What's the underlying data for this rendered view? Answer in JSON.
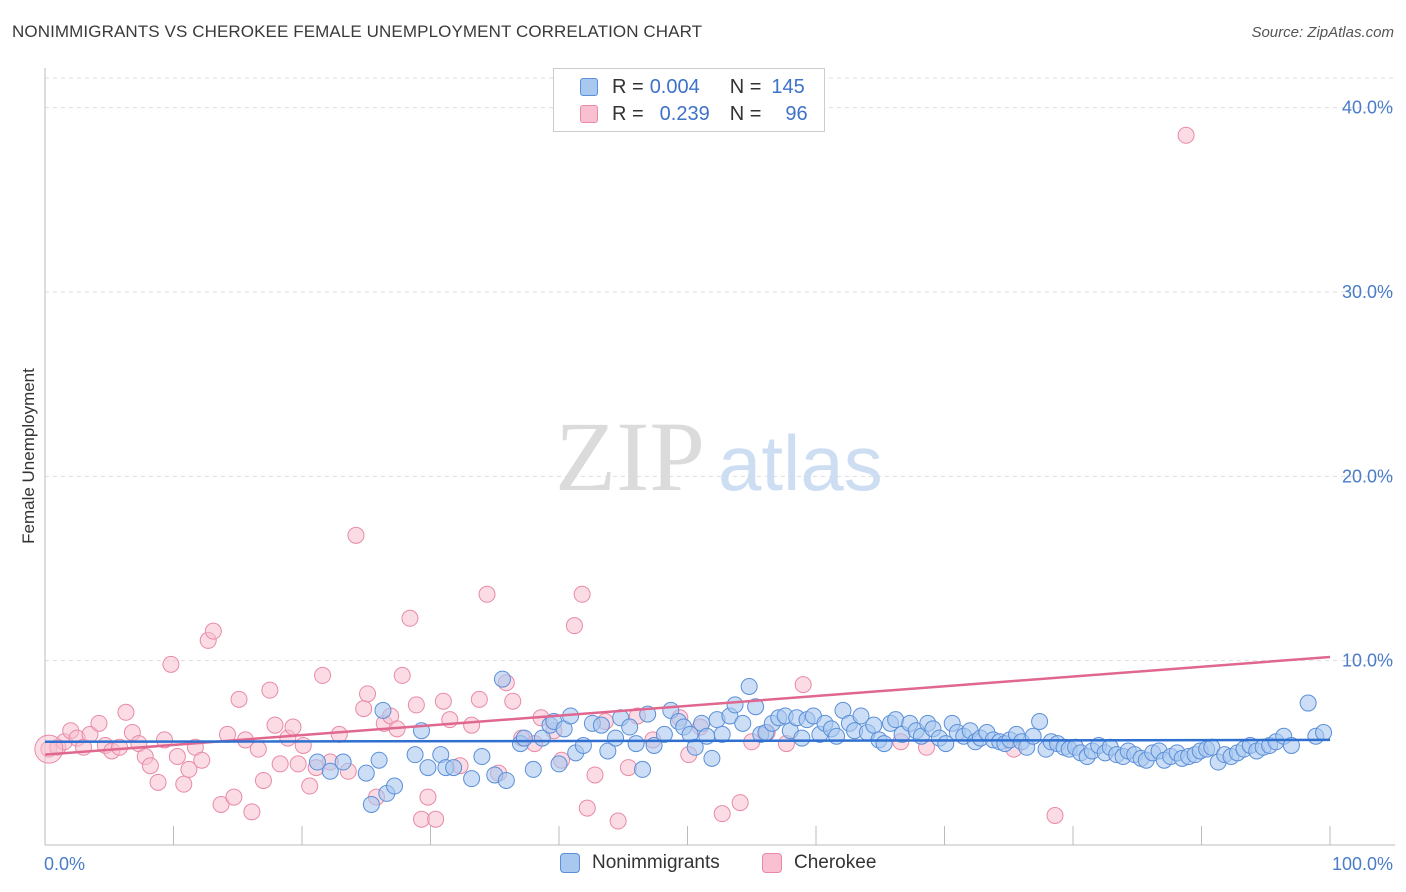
{
  "header": {
    "title": "NONIMMIGRANTS VS CHEROKEE FEMALE UNEMPLOYMENT CORRELATION CHART",
    "source": "Source: ZipAtlas.com"
  },
  "watermark": {
    "zip": "ZIP",
    "atlas": "atlas"
  },
  "legend": {
    "rows": [
      {
        "r_label": "R =",
        "r_value": "0.004",
        "n_label": "N =",
        "n_value": "145",
        "color": "#a9c8f0",
        "border": "#5b8fd8"
      },
      {
        "r_label": "R =",
        "r_value": "0.239",
        "n_label": "N =",
        "n_value": "96",
        "color": "#f8c0d0",
        "border": "#e88aa6"
      }
    ]
  },
  "bottom_legend": {
    "series1": "Nonimmigrants",
    "series2": "Cherokee"
  },
  "colors": {
    "blue_fill": "#a9c8f0",
    "blue_stroke": "#5b8fd8",
    "blue_line": "#2f6fd0",
    "pink_fill": "#f8c0d0",
    "pink_stroke": "#e88aa6",
    "pink_line": "#e0678f",
    "tick_text": "#4a7cc9",
    "grid": "#dddddd"
  },
  "chart_data": {
    "type": "scatter",
    "title": "NONIMMIGRANTS VS CHEROKEE FEMALE UNEMPLOYMENT CORRELATION CHART",
    "xlabel": "",
    "ylabel": "Female Unemployment",
    "xlim": [
      0,
      100
    ],
    "ylim": [
      0,
      41.5
    ],
    "x_tick_labels": [
      "0.0%",
      "100.0%"
    ],
    "y_ticks": [
      10,
      20,
      30,
      40
    ],
    "y_tick_labels": [
      "10.0%",
      "20.0%",
      "30.0%",
      "40.0%"
    ],
    "grid": true,
    "legend_position": "top-center",
    "series": [
      {
        "name": "Nonimmigrants",
        "r": 0.004,
        "n": 145,
        "trend": {
          "x": [
            0,
            100
          ],
          "y": [
            5.6,
            5.7
          ]
        },
        "points": [
          [
            21.2,
            4.5
          ],
          [
            22.2,
            4.0
          ],
          [
            23.2,
            4.5
          ],
          [
            25.0,
            3.9
          ],
          [
            25.4,
            2.2
          ],
          [
            26.0,
            4.6
          ],
          [
            26.3,
            7.3
          ],
          [
            26.6,
            2.8
          ],
          [
            27.2,
            3.2
          ],
          [
            29.3,
            6.2
          ],
          [
            28.8,
            4.9
          ],
          [
            29.8,
            4.2
          ],
          [
            30.8,
            4.9
          ],
          [
            31.2,
            4.2
          ],
          [
            31.8,
            4.2
          ],
          [
            33.2,
            3.6
          ],
          [
            34.0,
            4.8
          ],
          [
            35.0,
            3.8
          ],
          [
            35.6,
            9.0
          ],
          [
            35.9,
            3.5
          ],
          [
            37.0,
            5.5
          ],
          [
            37.3,
            5.8
          ],
          [
            38.0,
            4.1
          ],
          [
            38.7,
            5.8
          ],
          [
            39.3,
            6.5
          ],
          [
            39.6,
            6.7
          ],
          [
            40.0,
            4.4
          ],
          [
            40.4,
            6.3
          ],
          [
            40.9,
            7.0
          ],
          [
            41.3,
            5.0
          ],
          [
            41.9,
            5.4
          ],
          [
            42.6,
            6.6
          ],
          [
            43.3,
            6.5
          ],
          [
            43.8,
            5.1
          ],
          [
            44.4,
            5.8
          ],
          [
            44.8,
            6.9
          ],
          [
            45.5,
            6.4
          ],
          [
            46.0,
            5.5
          ],
          [
            46.5,
            4.1
          ],
          [
            46.9,
            7.1
          ],
          [
            47.4,
            5.4
          ],
          [
            48.2,
            6.0
          ],
          [
            48.7,
            7.3
          ],
          [
            49.3,
            6.7
          ],
          [
            49.7,
            6.4
          ],
          [
            50.2,
            6.0
          ],
          [
            50.6,
            5.3
          ],
          [
            51.1,
            6.6
          ],
          [
            51.5,
            5.9
          ],
          [
            51.9,
            4.7
          ],
          [
            52.3,
            6.8
          ],
          [
            52.7,
            6.0
          ],
          [
            53.3,
            7.0
          ],
          [
            53.7,
            7.6
          ],
          [
            54.3,
            6.6
          ],
          [
            54.8,
            8.6
          ],
          [
            55.3,
            7.5
          ],
          [
            55.7,
            6.0
          ],
          [
            56.1,
            6.1
          ],
          [
            56.6,
            6.6
          ],
          [
            57.1,
            6.9
          ],
          [
            57.6,
            7.0
          ],
          [
            58.0,
            6.2
          ],
          [
            58.5,
            6.9
          ],
          [
            58.9,
            5.8
          ],
          [
            59.3,
            6.8
          ],
          [
            59.8,
            7.0
          ],
          [
            60.3,
            6.0
          ],
          [
            60.7,
            6.6
          ],
          [
            61.2,
            6.3
          ],
          [
            61.6,
            5.9
          ],
          [
            62.1,
            7.3
          ],
          [
            62.6,
            6.6
          ],
          [
            63.0,
            6.2
          ],
          [
            63.5,
            7.0
          ],
          [
            64.0,
            6.1
          ],
          [
            64.5,
            6.5
          ],
          [
            64.9,
            5.7
          ],
          [
            65.3,
            5.5
          ],
          [
            65.8,
            6.6
          ],
          [
            66.2,
            6.8
          ],
          [
            66.7,
            6.0
          ],
          [
            67.3,
            6.6
          ],
          [
            67.8,
            6.2
          ],
          [
            68.2,
            5.9
          ],
          [
            68.7,
            6.6
          ],
          [
            69.1,
            6.3
          ],
          [
            69.6,
            5.8
          ],
          [
            70.1,
            5.5
          ],
          [
            70.6,
            6.6
          ],
          [
            71.0,
            6.1
          ],
          [
            71.5,
            5.9
          ],
          [
            72.0,
            6.2
          ],
          [
            72.4,
            5.6
          ],
          [
            72.8,
            5.8
          ],
          [
            73.3,
            6.1
          ],
          [
            73.8,
            5.7
          ],
          [
            74.3,
            5.6
          ],
          [
            74.7,
            5.5
          ],
          [
            75.1,
            5.7
          ],
          [
            75.6,
            6.0
          ],
          [
            76.0,
            5.6
          ],
          [
            76.4,
            5.3
          ],
          [
            76.9,
            5.9
          ],
          [
            77.4,
            6.7
          ],
          [
            77.9,
            5.2
          ],
          [
            78.3,
            5.6
          ],
          [
            78.8,
            5.5
          ],
          [
            79.3,
            5.3
          ],
          [
            79.7,
            5.2
          ],
          [
            80.2,
            5.3
          ],
          [
            80.6,
            5.0
          ],
          [
            81.1,
            4.8
          ],
          [
            81.5,
            5.1
          ],
          [
            82.0,
            5.4
          ],
          [
            82.5,
            5.0
          ],
          [
            82.9,
            5.3
          ],
          [
            83.4,
            4.9
          ],
          [
            83.9,
            4.8
          ],
          [
            84.3,
            5.1
          ],
          [
            84.8,
            4.9
          ],
          [
            85.3,
            4.7
          ],
          [
            85.7,
            4.6
          ],
          [
            86.2,
            5.0
          ],
          [
            86.7,
            5.1
          ],
          [
            87.1,
            4.6
          ],
          [
            87.6,
            4.8
          ],
          [
            88.1,
            5.0
          ],
          [
            88.5,
            4.7
          ],
          [
            89.0,
            4.8
          ],
          [
            89.5,
            4.9
          ],
          [
            89.9,
            5.1
          ],
          [
            90.4,
            5.2
          ],
          [
            90.8,
            5.3
          ],
          [
            91.3,
            4.5
          ],
          [
            91.8,
            4.9
          ],
          [
            92.3,
            4.8
          ],
          [
            92.8,
            5.0
          ],
          [
            93.3,
            5.2
          ],
          [
            93.8,
            5.4
          ],
          [
            94.3,
            5.1
          ],
          [
            94.8,
            5.3
          ],
          [
            95.3,
            5.4
          ],
          [
            95.8,
            5.6
          ],
          [
            96.4,
            5.9
          ],
          [
            97.0,
            5.4
          ],
          [
            98.3,
            7.7
          ],
          [
            98.9,
            5.9
          ],
          [
            99.5,
            6.1
          ]
        ]
      },
      {
        "name": "Cherokee",
        "r": 0.239,
        "n": 96,
        "trend": {
          "x": [
            0,
            100
          ],
          "y": [
            4.9,
            10.2
          ]
        },
        "points": [
          [
            0.3,
            5.2
          ],
          [
            1.0,
            5.3
          ],
          [
            1.5,
            5.6
          ],
          [
            2.0,
            6.2
          ],
          [
            2.5,
            5.8
          ],
          [
            3.0,
            5.3
          ],
          [
            3.5,
            6.0
          ],
          [
            4.2,
            6.6
          ],
          [
            4.7,
            5.4
          ],
          [
            5.2,
            5.1
          ],
          [
            5.8,
            5.3
          ],
          [
            6.3,
            7.2
          ],
          [
            6.8,
            6.1
          ],
          [
            7.3,
            5.5
          ],
          [
            7.8,
            4.8
          ],
          [
            8.2,
            4.3
          ],
          [
            8.8,
            3.4
          ],
          [
            9.3,
            5.7
          ],
          [
            9.8,
            9.8
          ],
          [
            10.3,
            4.8
          ],
          [
            10.8,
            3.3
          ],
          [
            11.2,
            4.1
          ],
          [
            11.7,
            5.3
          ],
          [
            12.2,
            4.6
          ],
          [
            12.7,
            11.1
          ],
          [
            13.1,
            11.6
          ],
          [
            13.7,
            2.2
          ],
          [
            14.2,
            6.0
          ],
          [
            14.7,
            2.6
          ],
          [
            15.1,
            7.9
          ],
          [
            15.6,
            5.7
          ],
          [
            16.1,
            1.8
          ],
          [
            16.6,
            5.2
          ],
          [
            17.0,
            3.5
          ],
          [
            17.5,
            8.4
          ],
          [
            17.9,
            6.5
          ],
          [
            18.3,
            4.4
          ],
          [
            18.9,
            5.8
          ],
          [
            19.3,
            6.4
          ],
          [
            19.7,
            4.4
          ],
          [
            20.1,
            5.4
          ],
          [
            20.6,
            3.2
          ],
          [
            21.1,
            4.2
          ],
          [
            21.6,
            9.2
          ],
          [
            22.2,
            4.5
          ],
          [
            22.9,
            6.0
          ],
          [
            23.6,
            4.0
          ],
          [
            24.2,
            16.8
          ],
          [
            24.8,
            7.4
          ],
          [
            25.1,
            8.2
          ],
          [
            25.8,
            2.6
          ],
          [
            26.4,
            6.6
          ],
          [
            26.9,
            7.0
          ],
          [
            27.4,
            6.3
          ],
          [
            27.8,
            9.2
          ],
          [
            28.4,
            12.3
          ],
          [
            28.9,
            7.6
          ],
          [
            29.3,
            1.4
          ],
          [
            29.8,
            2.6
          ],
          [
            30.4,
            1.4
          ],
          [
            31.0,
            7.8
          ],
          [
            31.5,
            6.8
          ],
          [
            32.3,
            4.3
          ],
          [
            33.2,
            6.5
          ],
          [
            33.8,
            7.9
          ],
          [
            34.4,
            13.6
          ],
          [
            35.3,
            3.9
          ],
          [
            35.9,
            8.8
          ],
          [
            36.4,
            7.8
          ],
          [
            37.1,
            5.8
          ],
          [
            38.1,
            5.5
          ],
          [
            38.6,
            6.9
          ],
          [
            39.6,
            6.2
          ],
          [
            40.2,
            4.6
          ],
          [
            41.2,
            11.9
          ],
          [
            41.8,
            13.6
          ],
          [
            42.2,
            2.0
          ],
          [
            42.8,
            3.8
          ],
          [
            43.6,
            6.7
          ],
          [
            44.6,
            1.3
          ],
          [
            45.4,
            4.2
          ],
          [
            46.1,
            7.0
          ],
          [
            47.3,
            5.7
          ],
          [
            49.4,
            6.9
          ],
          [
            50.1,
            4.9
          ],
          [
            51.0,
            6.4
          ],
          [
            52.7,
            1.7
          ],
          [
            54.1,
            2.3
          ],
          [
            55.0,
            5.6
          ],
          [
            56.2,
            6.1
          ],
          [
            57.7,
            5.5
          ],
          [
            59.0,
            8.7
          ],
          [
            66.6,
            5.6
          ],
          [
            68.6,
            5.3
          ],
          [
            75.4,
            5.2
          ],
          [
            78.6,
            1.6
          ],
          [
            88.8,
            38.5
          ]
        ]
      }
    ]
  }
}
